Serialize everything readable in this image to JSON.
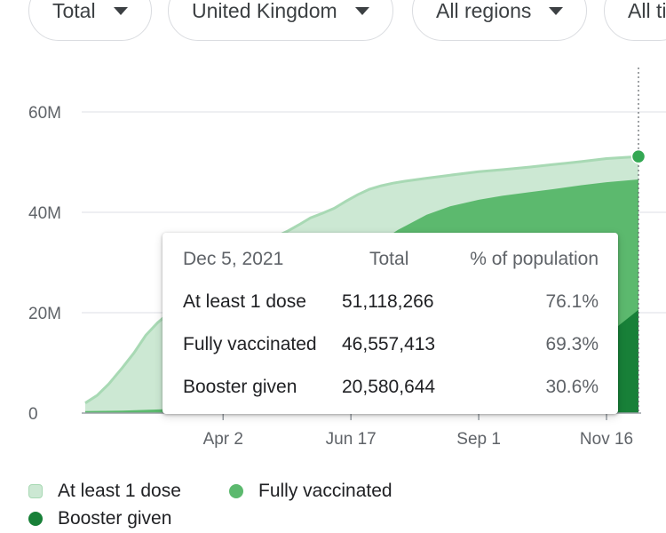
{
  "filters": {
    "metric": "Total",
    "location": "United Kingdom",
    "region": "All regions",
    "time": "All ti"
  },
  "colors": {
    "at_least_1_dose": "#cce8d3",
    "at_least_1_dose_line": "#a8d9b4",
    "fully_vaccinated": "#5cb96e",
    "booster_given": "#188038",
    "point": "#34a853"
  },
  "chart_data": {
    "type": "area",
    "xlabel": "",
    "ylabel": "",
    "ylim": [
      0,
      60000000
    ],
    "y_ticks": [
      {
        "value": 0,
        "label": "0"
      },
      {
        "value": 20000000,
        "label": "20M"
      },
      {
        "value": 40000000,
        "label": "40M"
      },
      {
        "value": 60000000,
        "label": "60M"
      }
    ],
    "x_range": [
      "2021-01-10",
      "2021-12-05"
    ],
    "x_ticks": [
      {
        "date": "2021-04-02",
        "label": "Apr 2"
      },
      {
        "date": "2021-06-17",
        "label": "Jun 17"
      },
      {
        "date": "2021-09-01",
        "label": "Sep 1"
      },
      {
        "date": "2021-11-16",
        "label": "Nov 16"
      }
    ],
    "grid": true,
    "legend": "bottom",
    "series": [
      {
        "name": "At least 1 dose",
        "color": "#cce8d3",
        "points": [
          [
            "2021-01-10",
            2000000
          ],
          [
            "2021-01-17",
            3500000
          ],
          [
            "2021-01-24",
            5800000
          ],
          [
            "2021-02-01",
            9000000
          ],
          [
            "2021-02-08",
            12000000
          ],
          [
            "2021-02-15",
            15500000
          ],
          [
            "2021-02-22",
            18000000
          ],
          [
            "2021-03-01",
            20000000
          ],
          [
            "2021-03-08",
            22200000
          ],
          [
            "2021-03-15",
            24500000
          ],
          [
            "2021-03-22",
            27500000
          ],
          [
            "2021-03-29",
            30500000
          ],
          [
            "2021-04-05",
            31300000
          ],
          [
            "2021-04-12",
            32200000
          ],
          [
            "2021-04-19",
            33000000
          ],
          [
            "2021-04-26",
            34000000
          ],
          [
            "2021-05-03",
            35100000
          ],
          [
            "2021-05-10",
            36200000
          ],
          [
            "2021-05-17",
            37500000
          ],
          [
            "2021-05-24",
            38900000
          ],
          [
            "2021-05-31",
            39800000
          ],
          [
            "2021-06-07",
            40800000
          ],
          [
            "2021-06-14",
            42200000
          ],
          [
            "2021-06-21",
            43500000
          ],
          [
            "2021-06-28",
            44600000
          ],
          [
            "2021-07-05",
            45300000
          ],
          [
            "2021-07-12",
            45800000
          ],
          [
            "2021-07-19",
            46200000
          ],
          [
            "2021-08-01",
            46800000
          ],
          [
            "2021-08-15",
            47400000
          ],
          [
            "2021-09-01",
            48100000
          ],
          [
            "2021-09-15",
            48500000
          ],
          [
            "2021-10-01",
            49000000
          ],
          [
            "2021-10-15",
            49500000
          ],
          [
            "2021-11-01",
            50100000
          ],
          [
            "2021-11-16",
            50700000
          ],
          [
            "2021-12-05",
            51118266
          ]
        ]
      },
      {
        "name": "Fully vaccinated",
        "color": "#5cb96e",
        "points": [
          [
            "2021-01-10",
            400000
          ],
          [
            "2021-02-01",
            500000
          ],
          [
            "2021-03-01",
            800000
          ],
          [
            "2021-03-15",
            1500000
          ],
          [
            "2021-04-01",
            4000000
          ],
          [
            "2021-04-15",
            9000000
          ],
          [
            "2021-05-01",
            15000000
          ],
          [
            "2021-05-15",
            20000000
          ],
          [
            "2021-06-01",
            26000000
          ],
          [
            "2021-06-15",
            30000000
          ],
          [
            "2021-07-01",
            33500000
          ],
          [
            "2021-07-15",
            36500000
          ],
          [
            "2021-08-01",
            39500000
          ],
          [
            "2021-08-15",
            41200000
          ],
          [
            "2021-09-01",
            42500000
          ],
          [
            "2021-09-15",
            43300000
          ],
          [
            "2021-10-01",
            44000000
          ],
          [
            "2021-10-15",
            44600000
          ],
          [
            "2021-11-01",
            45400000
          ],
          [
            "2021-11-16",
            46000000
          ],
          [
            "2021-12-05",
            46557413
          ]
        ]
      },
      {
        "name": "Booster given",
        "color": "#188038",
        "points": [
          [
            "2021-01-10",
            0
          ],
          [
            "2021-09-15",
            0
          ],
          [
            "2021-09-20",
            300000
          ],
          [
            "2021-10-01",
            3000000
          ],
          [
            "2021-10-15",
            6500000
          ],
          [
            "2021-11-01",
            11000000
          ],
          [
            "2021-11-16",
            15500000
          ],
          [
            "2021-12-05",
            20580644
          ]
        ]
      }
    ]
  },
  "tooltip": {
    "date": "Dec 5, 2021",
    "col_total": "Total",
    "col_pct": "% of population",
    "rows": [
      {
        "label": "At least 1 dose",
        "total": "51,118,266",
        "pct": "76.1%"
      },
      {
        "label": "Fully vaccinated",
        "total": "46,557,413",
        "pct": "69.3%"
      },
      {
        "label": "Booster given",
        "total": "20,580,644",
        "pct": "30.6%"
      }
    ]
  },
  "legend": {
    "items": [
      {
        "label": "At least 1 dose"
      },
      {
        "label": "Fully vaccinated"
      },
      {
        "label": "Booster given"
      }
    ]
  }
}
